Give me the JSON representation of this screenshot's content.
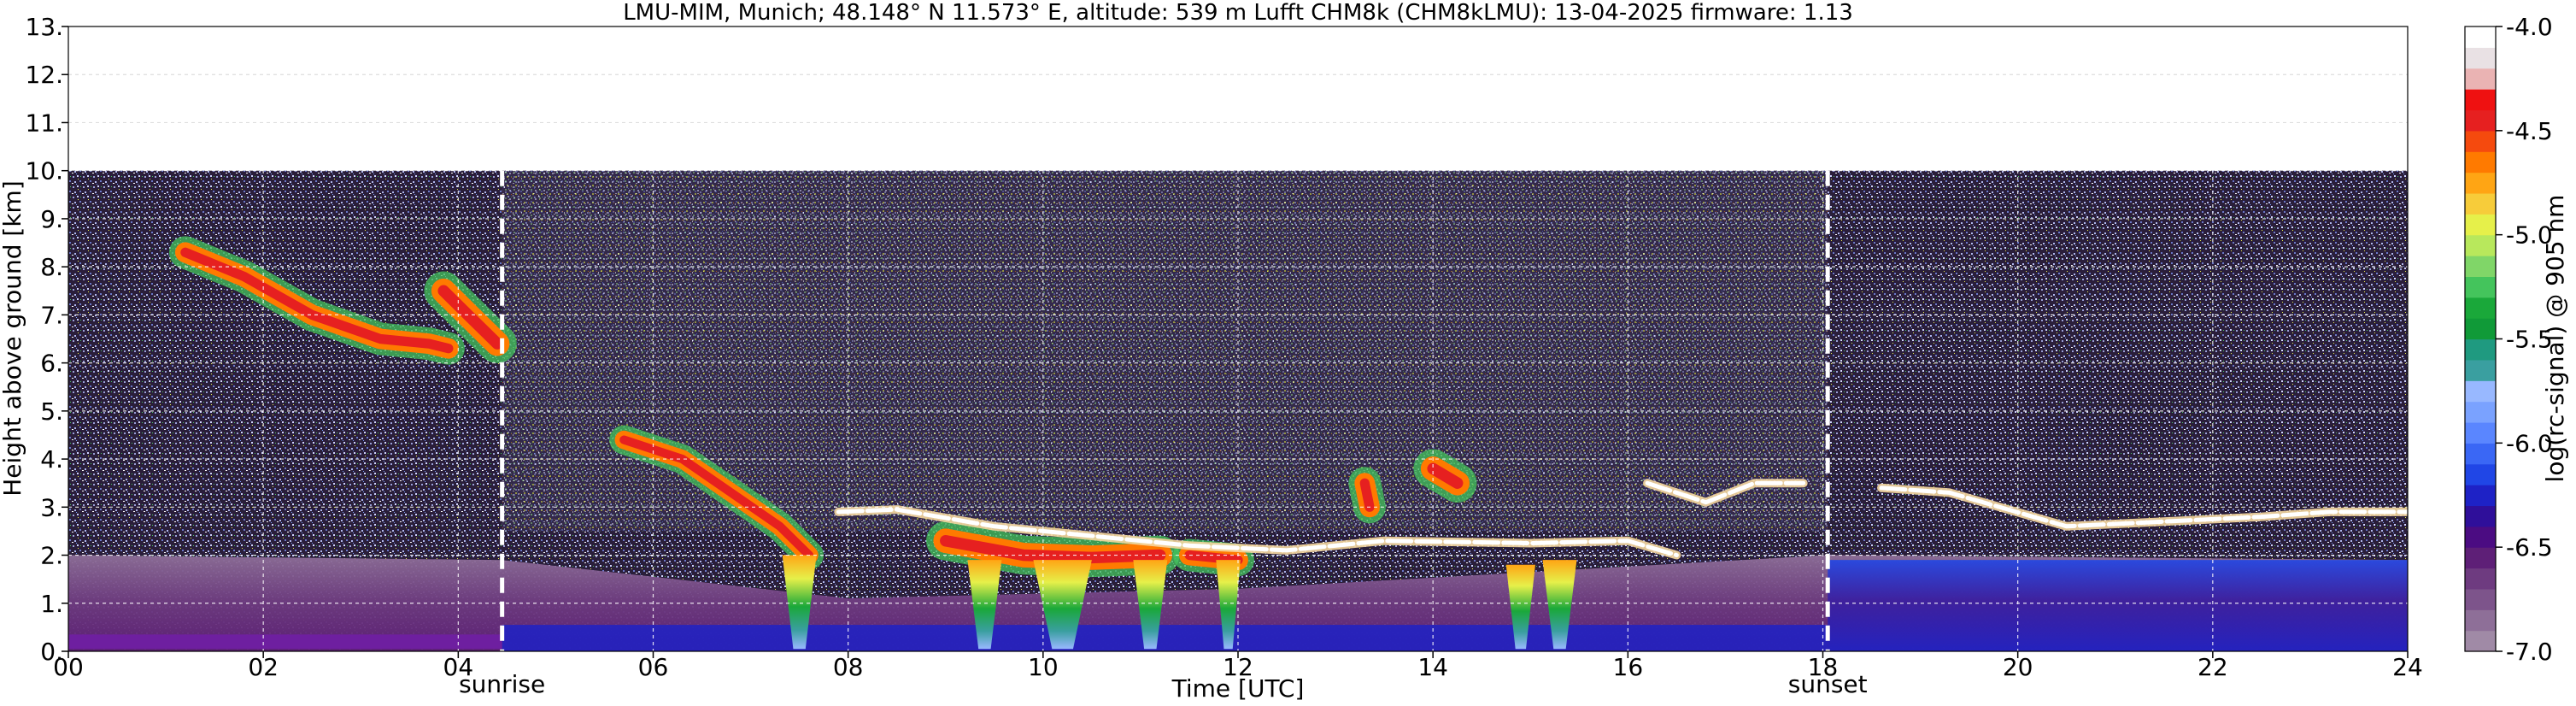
{
  "chart_data": {
    "type": "heatmap",
    "title": "LMU-MIM, Munich; 48.148° N 11.573° E, altitude: 539 m    Lufft CHM8k (CHM8kLMU): 13-04-2025    firmware: 1.13",
    "xlabel": "Time [UTC]",
    "ylabel": "Height above ground [km]",
    "xlim": [
      0,
      24
    ],
    "ylim": [
      0,
      13
    ],
    "x_ticks": [
      "00",
      "02",
      "04",
      "06",
      "08",
      "10",
      "12",
      "14",
      "16",
      "18",
      "20",
      "22",
      "24"
    ],
    "y_ticks": [
      "0.",
      "1.",
      "2.",
      "3.",
      "4.",
      "5.",
      "6.",
      "7.",
      "8.",
      "9.",
      "10.",
      "11.",
      "12.",
      "13."
    ],
    "grid": true,
    "data_top_km": 10,
    "colorbar": {
      "label": "log(rc-signal) @ 905 nm",
      "range": [
        -7.0,
        -4.0
      ],
      "ticks": [
        "-4.0",
        "-4.5",
        "-5.0",
        "-5.5",
        "-6.0",
        "-6.5",
        "-7.0"
      ],
      "colors": [
        "#a08aa6",
        "#8e6f98",
        "#7d548b",
        "#6e3b80",
        "#5e1f77",
        "#4b0c82",
        "#2f0f9a",
        "#1e22c6",
        "#2046e6",
        "#3a67f5",
        "#5a86ff",
        "#7aa2ff",
        "#98b8ff",
        "#3a9fa0",
        "#1f9a80",
        "#109a38",
        "#1aa83a",
        "#44c45c",
        "#80d668",
        "#b8e85c",
        "#e6f04a",
        "#f7cc3a",
        "#ffa514",
        "#ff7a00",
        "#f54a0e",
        "#e62020",
        "#ef1111",
        "#eab3b3",
        "#e9e1e4",
        "#ffffff"
      ]
    },
    "events": [
      {
        "label": "sunrise",
        "x": 4.45
      },
      {
        "label": "sunset",
        "x": 18.05
      }
    ],
    "layers": [
      {
        "kind": "cirrus",
        "points": [
          [
            1.2,
            8.3
          ],
          [
            1.8,
            7.8
          ],
          [
            2.5,
            7.0
          ],
          [
            3.2,
            6.5
          ],
          [
            3.7,
            6.4
          ],
          [
            3.9,
            6.3
          ]
        ],
        "width_km": 0.5
      },
      {
        "kind": "cirrus",
        "points": [
          [
            3.85,
            7.5
          ],
          [
            4.1,
            7.0
          ],
          [
            4.4,
            6.4
          ]
        ],
        "width_km": 0.6
      },
      {
        "kind": "cirrus",
        "points": [
          [
            5.7,
            4.4
          ],
          [
            6.3,
            4.0
          ],
          [
            6.8,
            3.3
          ],
          [
            7.3,
            2.6
          ],
          [
            7.6,
            2.0
          ]
        ],
        "width_km": 0.45
      },
      {
        "kind": "cloud",
        "points": [
          [
            9.0,
            2.3
          ],
          [
            9.8,
            2.0
          ],
          [
            10.5,
            1.95
          ],
          [
            11.2,
            2.0
          ]
        ],
        "width_km": 0.6
      },
      {
        "kind": "cloud",
        "points": [
          [
            11.5,
            2.0
          ],
          [
            12.0,
            1.9
          ]
        ],
        "width_km": 0.5
      },
      {
        "kind": "cloud",
        "points": [
          [
            13.3,
            3.5
          ],
          [
            13.35,
            3.0
          ]
        ],
        "width_km": 0.5
      },
      {
        "kind": "cloud",
        "points": [
          [
            14.0,
            3.8
          ],
          [
            14.25,
            3.5
          ]
        ],
        "width_km": 0.6
      }
    ],
    "precip_columns": [
      {
        "x": 7.5,
        "top": 2.0,
        "width_h": 0.35
      },
      {
        "x": 9.4,
        "top": 1.9,
        "width_h": 0.35
      },
      {
        "x": 10.2,
        "top": 1.9,
        "width_h": 0.6
      },
      {
        "x": 11.1,
        "top": 1.9,
        "width_h": 0.35
      },
      {
        "x": 11.9,
        "top": 1.9,
        "width_h": 0.25
      },
      {
        "x": 14.9,
        "top": 1.8,
        "width_h": 0.3
      },
      {
        "x": 15.3,
        "top": 1.9,
        "width_h": 0.35
      }
    ],
    "cloud_base": [
      [
        7.9,
        2.9
      ],
      [
        8.5,
        2.95
      ],
      [
        9.5,
        2.6
      ],
      [
        10.5,
        2.4
      ],
      [
        11.5,
        2.2
      ],
      [
        12.5,
        2.1
      ],
      [
        13.5,
        2.3
      ],
      [
        15.0,
        2.25
      ],
      [
        16.0,
        2.3
      ],
      [
        16.5,
        2.0
      ]
    ],
    "cloud_base_2": [
      [
        16.2,
        3.5
      ],
      [
        16.8,
        3.1
      ],
      [
        17.3,
        3.5
      ],
      [
        17.8,
        3.5
      ]
    ],
    "cloud_base_3": [
      [
        18.6,
        3.4
      ],
      [
        19.3,
        3.3
      ],
      [
        20.5,
        2.6
      ],
      [
        21.5,
        2.7
      ],
      [
        22.5,
        2.8
      ],
      [
        23.2,
        2.9
      ],
      [
        24.0,
        2.9
      ]
    ],
    "boundary_layer_top": [
      [
        0,
        2.0
      ],
      [
        4.45,
        1.9
      ],
      [
        8.0,
        1.1
      ],
      [
        12.0,
        1.3
      ],
      [
        18.05,
        2.0
      ],
      [
        24,
        1.9
      ]
    ]
  }
}
